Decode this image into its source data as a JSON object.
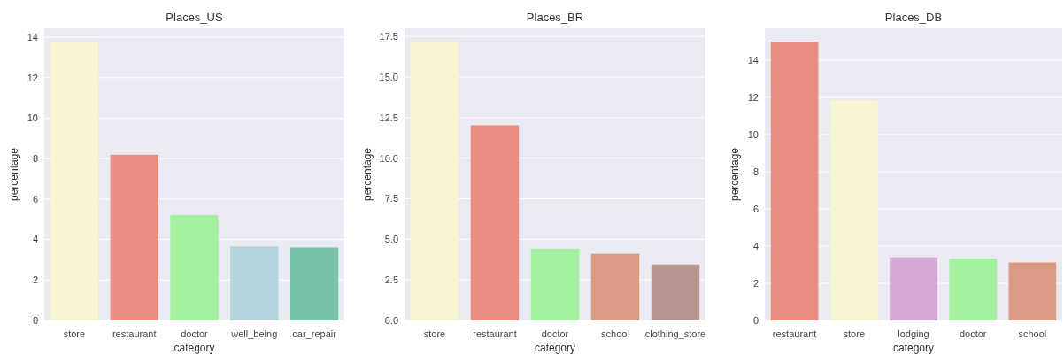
{
  "chart_data": [
    {
      "type": "bar",
      "title": "Places_US",
      "xlabel": "category",
      "ylabel": "percentage",
      "categories": [
        "store",
        "restaurant",
        "doctor",
        "well_being",
        "car_repair"
      ],
      "values": [
        13.77,
        8.19,
        5.21,
        3.66,
        3.61
      ],
      "colors": [
        "#f8f5d2",
        "#e88e80",
        "#a4f0a0",
        "#b4d4de",
        "#75c2a8"
      ],
      "ylim": [
        0,
        14.44
      ],
      "yticks": [
        0,
        2,
        4,
        6,
        8,
        10,
        12,
        14
      ],
      "grid": "y"
    },
    {
      "type": "bar",
      "title": "Places_BR",
      "xlabel": "category",
      "ylabel": "percentage",
      "categories": [
        "store",
        "restaurant",
        "doctor",
        "school",
        "clothing_store"
      ],
      "values": [
        17.21,
        12.03,
        4.43,
        4.11,
        3.45
      ],
      "colors": [
        "#f8f5d2",
        "#e88e80",
        "#a4f0a0",
        "#d99b84",
        "#b69591"
      ],
      "ylim": [
        0,
        18.0
      ],
      "yticks": [
        {
          "value": 0,
          "label": "0.0"
        },
        {
          "value": 2.5,
          "label": "2.5"
        },
        {
          "value": 5,
          "label": "5.0"
        },
        {
          "value": 7.5,
          "label": "7.5"
        },
        {
          "value": 10,
          "label": "10.0"
        },
        {
          "value": 12.5,
          "label": "12.5"
        },
        {
          "value": 15,
          "label": "15.0"
        },
        {
          "value": 17.5,
          "label": "17.5"
        }
      ],
      "grid": "y"
    },
    {
      "type": "bar",
      "title": "Places_DB",
      "xlabel": "category",
      "ylabel": "percentage",
      "categories": [
        "restaurant",
        "store",
        "lodging",
        "doctor",
        "school"
      ],
      "values": [
        15.0,
        11.86,
        3.4,
        3.34,
        3.12
      ],
      "colors": [
        "#e88e80",
        "#f8f5d2",
        "#d7a7d5",
        "#a4f0a0",
        "#d99b84"
      ],
      "ylim": [
        0,
        15.72
      ],
      "yticks": [
        0,
        2,
        4,
        6,
        8,
        10,
        12,
        14
      ],
      "grid": "y"
    }
  ]
}
